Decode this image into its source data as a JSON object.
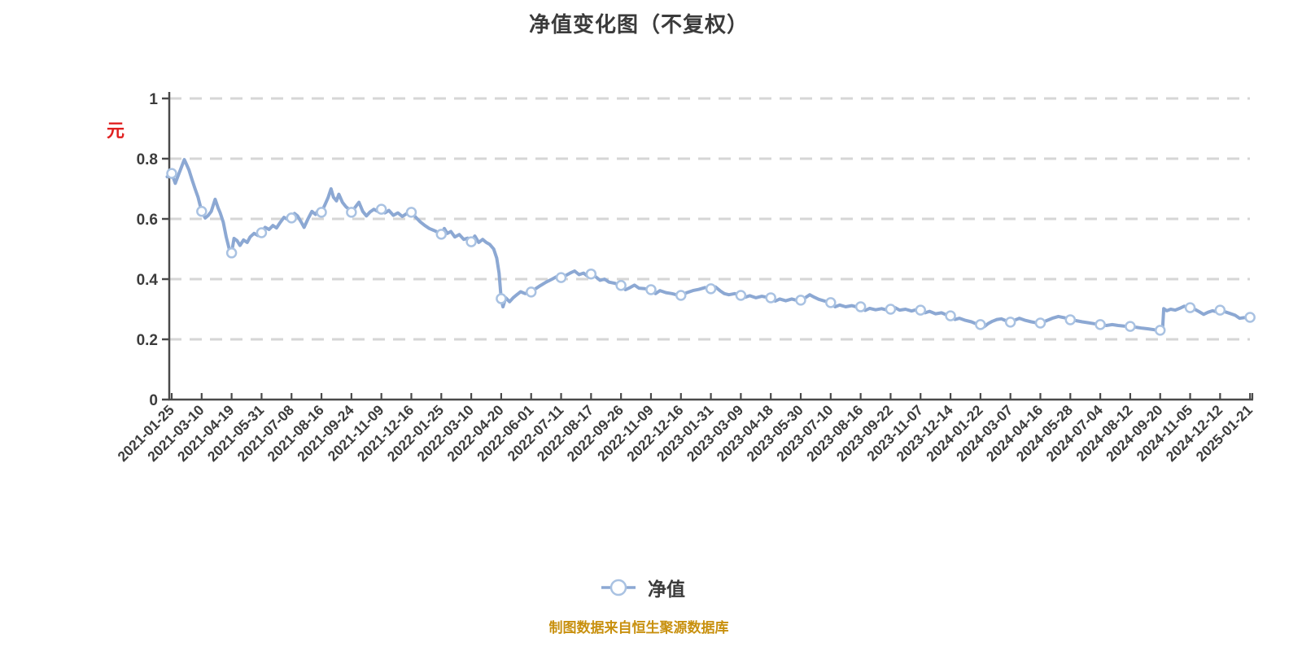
{
  "title": "净值变化图（不复权）",
  "y_axis_unit": "元",
  "legend": {
    "label": "净值"
  },
  "footer": "制图数据来自恒生聚源数据库",
  "colors": {
    "line": "#8CA8D3",
    "marker_fill": "#ffffff",
    "marker_border": "#A9C2E2",
    "axis": "#4a4a4a",
    "grid": "#d6d6d6",
    "tick_text": "#3c3c3c",
    "unit_label": "#e02020",
    "footer_text": "#c8900e"
  },
  "chart_data": {
    "type": "line",
    "title": "净值变化图（不复权）",
    "series_name": "净值",
    "grid": "dashed-horizontal",
    "legend_position": "bottom-center",
    "ylim": [
      0,
      1
    ],
    "y_tick_labels": [
      "0",
      "0.2",
      "0.4",
      "0.6",
      "0.8",
      "1"
    ],
    "y_ticks": [
      0,
      0.2,
      0.4,
      0.6,
      0.8,
      1
    ],
    "x_labels": [
      "2021-01-25",
      "2021-03-10",
      "2021-04-19",
      "2021-05-31",
      "2021-07-08",
      "2021-08-16",
      "2021-09-24",
      "2021-11-09",
      "2021-12-16",
      "2022-01-25",
      "2022-03-10",
      "2022-04-20",
      "2022-06-01",
      "2022-07-11",
      "2022-08-17",
      "2022-09-26",
      "2022-11-09",
      "2022-12-16",
      "2023-01-31",
      "2023-03-09",
      "2023-04-18",
      "2023-05-30",
      "2023-07-10",
      "2023-08-16",
      "2023-09-22",
      "2023-11-07",
      "2023-12-14",
      "2024-01-22",
      "2024-03-07",
      "2024-04-16",
      "2024-05-28",
      "2024-07-04",
      "2024-08-12",
      "2024-09-20",
      "2024-11-05",
      "2024-12-12",
      "2025-01-21"
    ],
    "marker_values": [
      0.751,
      0.625,
      0.487,
      0.554,
      0.603,
      0.622,
      0.622,
      0.632,
      0.622,
      0.549,
      0.524,
      0.335,
      0.357,
      0.405,
      0.417,
      0.379,
      0.365,
      0.346,
      0.368,
      0.346,
      0.338,
      0.33,
      0.322,
      0.308,
      0.3,
      0.297,
      0.278,
      0.249,
      0.257,
      0.254,
      0.265,
      0.249,
      0.243,
      0.23,
      0.305,
      0.297,
      0.273
    ],
    "line_points": [
      [
        -0.15,
        0.74
      ],
      [
        0,
        0.751
      ],
      [
        0.12,
        0.718
      ],
      [
        0.2,
        0.74
      ],
      [
        0.3,
        0.765
      ],
      [
        0.42,
        0.797
      ],
      [
        0.5,
        0.78
      ],
      [
        0.58,
        0.762
      ],
      [
        0.68,
        0.73
      ],
      [
        0.78,
        0.7
      ],
      [
        0.88,
        0.672
      ],
      [
        1,
        0.625
      ],
      [
        1.12,
        0.603
      ],
      [
        1.22,
        0.612
      ],
      [
        1.32,
        0.625
      ],
      [
        1.45,
        0.665
      ],
      [
        1.55,
        0.636
      ],
      [
        1.62,
        0.62
      ],
      [
        1.72,
        0.59
      ],
      [
        1.82,
        0.54
      ],
      [
        1.92,
        0.5
      ],
      [
        2,
        0.487
      ],
      [
        2.08,
        0.535
      ],
      [
        2.18,
        0.528
      ],
      [
        2.28,
        0.512
      ],
      [
        2.4,
        0.53
      ],
      [
        2.52,
        0.522
      ],
      [
        2.62,
        0.54
      ],
      [
        2.75,
        0.552
      ],
      [
        2.88,
        0.545
      ],
      [
        3,
        0.554
      ],
      [
        3.12,
        0.572
      ],
      [
        3.25,
        0.565
      ],
      [
        3.38,
        0.578
      ],
      [
        3.5,
        0.57
      ],
      [
        3.62,
        0.588
      ],
      [
        3.75,
        0.605
      ],
      [
        3.88,
        0.598
      ],
      [
        4,
        0.603
      ],
      [
        4.1,
        0.618
      ],
      [
        4.2,
        0.61
      ],
      [
        4.32,
        0.59
      ],
      [
        4.42,
        0.572
      ],
      [
        4.55,
        0.6
      ],
      [
        4.68,
        0.625
      ],
      [
        4.8,
        0.615
      ],
      [
        4.9,
        0.63
      ],
      [
        5,
        0.622
      ],
      [
        5.12,
        0.648
      ],
      [
        5.22,
        0.67
      ],
      [
        5.32,
        0.7
      ],
      [
        5.4,
        0.672
      ],
      [
        5.5,
        0.66
      ],
      [
        5.58,
        0.682
      ],
      [
        5.7,
        0.655
      ],
      [
        5.82,
        0.64
      ],
      [
        5.92,
        0.632
      ],
      [
        6,
        0.622
      ],
      [
        6.12,
        0.638
      ],
      [
        6.25,
        0.655
      ],
      [
        6.38,
        0.625
      ],
      [
        6.5,
        0.61
      ],
      [
        6.62,
        0.623
      ],
      [
        6.75,
        0.632
      ],
      [
        6.88,
        0.625
      ],
      [
        7,
        0.632
      ],
      [
        7.12,
        0.62
      ],
      [
        7.25,
        0.628
      ],
      [
        7.4,
        0.612
      ],
      [
        7.55,
        0.62
      ],
      [
        7.7,
        0.608
      ],
      [
        7.85,
        0.618
      ],
      [
        8,
        0.622
      ],
      [
        8.15,
        0.605
      ],
      [
        8.3,
        0.59
      ],
      [
        8.45,
        0.578
      ],
      [
        8.6,
        0.568
      ],
      [
        8.75,
        0.562
      ],
      [
        8.88,
        0.556
      ],
      [
        9,
        0.549
      ],
      [
        9.1,
        0.568
      ],
      [
        9.2,
        0.552
      ],
      [
        9.32,
        0.558
      ],
      [
        9.45,
        0.54
      ],
      [
        9.6,
        0.548
      ],
      [
        9.75,
        0.532
      ],
      [
        9.88,
        0.536
      ],
      [
        10,
        0.524
      ],
      [
        10.12,
        0.543
      ],
      [
        10.25,
        0.522
      ],
      [
        10.38,
        0.532
      ],
      [
        10.5,
        0.522
      ],
      [
        10.62,
        0.515
      ],
      [
        10.75,
        0.5
      ],
      [
        10.85,
        0.47
      ],
      [
        10.93,
        0.42
      ],
      [
        11,
        0.335
      ],
      [
        11.06,
        0.308
      ],
      [
        11.15,
        0.338
      ],
      [
        11.28,
        0.325
      ],
      [
        11.4,
        0.338
      ],
      [
        11.52,
        0.348
      ],
      [
        11.65,
        0.358
      ],
      [
        11.8,
        0.352
      ],
      [
        12,
        0.357
      ],
      [
        12.15,
        0.368
      ],
      [
        12.3,
        0.378
      ],
      [
        12.5,
        0.39
      ],
      [
        12.7,
        0.4
      ],
      [
        12.85,
        0.408
      ],
      [
        13,
        0.405
      ],
      [
        13.15,
        0.412
      ],
      [
        13.3,
        0.42
      ],
      [
        13.45,
        0.427
      ],
      [
        13.6,
        0.415
      ],
      [
        13.75,
        0.42
      ],
      [
        13.88,
        0.41
      ],
      [
        14,
        0.417
      ],
      [
        14.15,
        0.408
      ],
      [
        14.3,
        0.396
      ],
      [
        14.45,
        0.4
      ],
      [
        14.6,
        0.39
      ],
      [
        14.8,
        0.386
      ],
      [
        15,
        0.379
      ],
      [
        15.15,
        0.365
      ],
      [
        15.3,
        0.372
      ],
      [
        15.45,
        0.38
      ],
      [
        15.6,
        0.37
      ],
      [
        15.8,
        0.368
      ],
      [
        16,
        0.365
      ],
      [
        16.15,
        0.352
      ],
      [
        16.3,
        0.362
      ],
      [
        16.5,
        0.355
      ],
      [
        16.7,
        0.352
      ],
      [
        16.85,
        0.348
      ],
      [
        17,
        0.346
      ],
      [
        17.2,
        0.355
      ],
      [
        17.4,
        0.362
      ],
      [
        17.6,
        0.366
      ],
      [
        17.8,
        0.372
      ],
      [
        18,
        0.368
      ],
      [
        18.15,
        0.374
      ],
      [
        18.3,
        0.362
      ],
      [
        18.45,
        0.352
      ],
      [
        18.6,
        0.348
      ],
      [
        18.8,
        0.352
      ],
      [
        19,
        0.346
      ],
      [
        19.15,
        0.34
      ],
      [
        19.3,
        0.345
      ],
      [
        19.5,
        0.338
      ],
      [
        19.7,
        0.343
      ],
      [
        19.85,
        0.34
      ],
      [
        20,
        0.338
      ],
      [
        20.15,
        0.327
      ],
      [
        20.3,
        0.334
      ],
      [
        20.5,
        0.328
      ],
      [
        20.7,
        0.334
      ],
      [
        20.85,
        0.33
      ],
      [
        21,
        0.33
      ],
      [
        21.15,
        0.338
      ],
      [
        21.3,
        0.348
      ],
      [
        21.45,
        0.34
      ],
      [
        21.6,
        0.333
      ],
      [
        21.8,
        0.327
      ],
      [
        22,
        0.322
      ],
      [
        22.15,
        0.308
      ],
      [
        22.3,
        0.314
      ],
      [
        22.5,
        0.308
      ],
      [
        22.7,
        0.312
      ],
      [
        22.85,
        0.308
      ],
      [
        23,
        0.308
      ],
      [
        23.15,
        0.296
      ],
      [
        23.3,
        0.303
      ],
      [
        23.5,
        0.298
      ],
      [
        23.7,
        0.302
      ],
      [
        23.85,
        0.298
      ],
      [
        24,
        0.3
      ],
      [
        24.15,
        0.305
      ],
      [
        24.3,
        0.297
      ],
      [
        24.5,
        0.3
      ],
      [
        24.7,
        0.294
      ],
      [
        24.85,
        0.298
      ],
      [
        25,
        0.297
      ],
      [
        25.15,
        0.288
      ],
      [
        25.3,
        0.293
      ],
      [
        25.5,
        0.285
      ],
      [
        25.7,
        0.288
      ],
      [
        25.85,
        0.282
      ],
      [
        26,
        0.278
      ],
      [
        26.15,
        0.266
      ],
      [
        26.3,
        0.27
      ],
      [
        26.5,
        0.263
      ],
      [
        26.7,
        0.258
      ],
      [
        26.85,
        0.252
      ],
      [
        27,
        0.249
      ],
      [
        27.12,
        0.242
      ],
      [
        27.25,
        0.252
      ],
      [
        27.4,
        0.26
      ],
      [
        27.55,
        0.266
      ],
      [
        27.7,
        0.268
      ],
      [
        27.85,
        0.262
      ],
      [
        28,
        0.257
      ],
      [
        28.15,
        0.264
      ],
      [
        28.3,
        0.27
      ],
      [
        28.5,
        0.263
      ],
      [
        28.7,
        0.258
      ],
      [
        28.85,
        0.255
      ],
      [
        29,
        0.254
      ],
      [
        29.2,
        0.262
      ],
      [
        29.4,
        0.27
      ],
      [
        29.6,
        0.276
      ],
      [
        29.8,
        0.272
      ],
      [
        30,
        0.265
      ],
      [
        30.2,
        0.262
      ],
      [
        30.4,
        0.258
      ],
      [
        30.6,
        0.255
      ],
      [
        30.8,
        0.252
      ],
      [
        31,
        0.249
      ],
      [
        31.2,
        0.246
      ],
      [
        31.4,
        0.249
      ],
      [
        31.6,
        0.246
      ],
      [
        31.8,
        0.244
      ],
      [
        32,
        0.243
      ],
      [
        32.2,
        0.24
      ],
      [
        32.4,
        0.237
      ],
      [
        32.6,
        0.235
      ],
      [
        32.8,
        0.232
      ],
      [
        33,
        0.23
      ],
      [
        33.08,
        0.236
      ],
      [
        33.12,
        0.302
      ],
      [
        33.22,
        0.295
      ],
      [
        33.35,
        0.3
      ],
      [
        33.5,
        0.297
      ],
      [
        33.65,
        0.303
      ],
      [
        33.8,
        0.31
      ],
      [
        33.9,
        0.307
      ],
      [
        34,
        0.305
      ],
      [
        34.15,
        0.3
      ],
      [
        34.3,
        0.292
      ],
      [
        34.45,
        0.283
      ],
      [
        34.6,
        0.29
      ],
      [
        34.75,
        0.295
      ],
      [
        34.88,
        0.292
      ],
      [
        35,
        0.297
      ],
      [
        35.15,
        0.292
      ],
      [
        35.3,
        0.287
      ],
      [
        35.5,
        0.28
      ],
      [
        35.65,
        0.27
      ],
      [
        35.8,
        0.272
      ],
      [
        36,
        0.273
      ]
    ]
  }
}
